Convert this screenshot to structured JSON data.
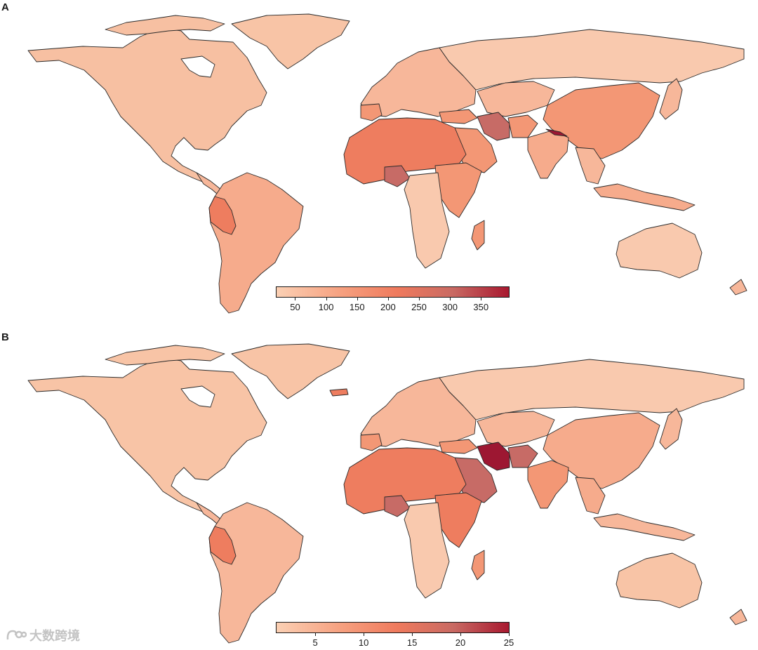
{
  "panel_a": {
    "label": "A",
    "legend": {
      "ticks": [
        "50",
        "100",
        "150",
        "200",
        "250",
        "300",
        "350"
      ],
      "min": 20,
      "max": 395
    },
    "color_ramp": [
      "#fbd0b4",
      "#f6a07f",
      "#ef7a5d",
      "#c96a63",
      "#a8182f"
    ]
  },
  "panel_b": {
    "label": "B",
    "legend": {
      "ticks": [
        "5",
        "10",
        "15",
        "20",
        "25"
      ],
      "min": 1,
      "max": 25
    },
    "color_ramp": [
      "#fbd0b4",
      "#f6a07f",
      "#ef7a5d",
      "#c96a63",
      "#a8182f"
    ]
  },
  "map_colors": {
    "lowest": "#f9c9ae",
    "low": "#f7b79a",
    "mid": "#f39775",
    "mid_high": "#ee7d5f",
    "high": "#c76b66",
    "highest": "#9d1732",
    "ocean": "#ffffff",
    "border": "#2a2a2a"
  },
  "watermark": {
    "text": "大数跨境",
    "icon": "logo-icon"
  }
}
